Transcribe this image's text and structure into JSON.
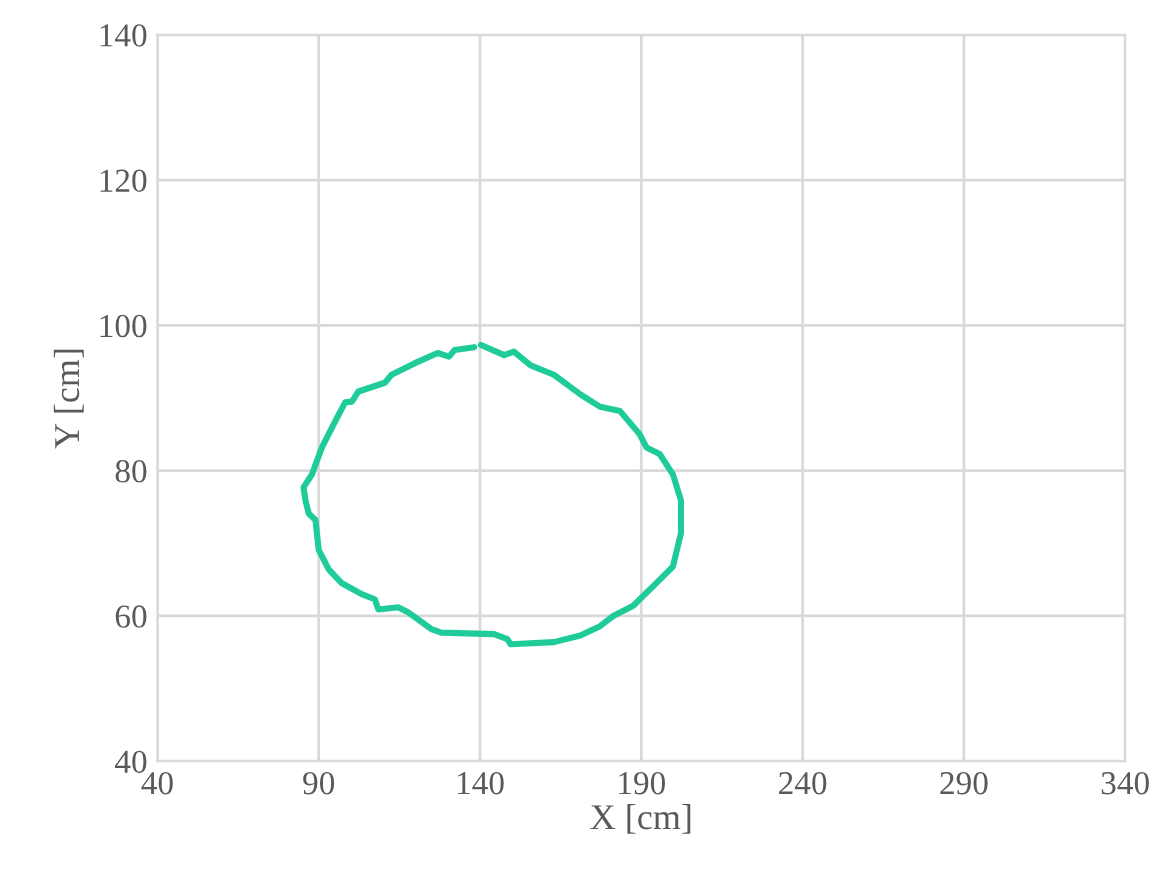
{
  "chart_data": {
    "type": "line",
    "xlabel": "X [cm]",
    "ylabel": "Y [cm]",
    "xlim": [
      40,
      340
    ],
    "xticks": [
      40,
      90,
      140,
      190,
      240,
      290,
      340
    ],
    "ylim": [
      40,
      140
    ],
    "yticks": [
      40,
      60,
      80,
      100,
      120,
      140
    ],
    "grid": true,
    "marker": "none",
    "line_style": "solid",
    "series": [
      {
        "color": "#1fcc99",
        "x": [
          140.3,
          147.5,
          150.5,
          155.7,
          162.9,
          171.1,
          177.2,
          183.4,
          189.5,
          191.6,
          195.7,
          199.8,
          202.3,
          202.3,
          199.8,
          193.7,
          187.5,
          181.3,
          177.2,
          171.1,
          162.9,
          149.5,
          148.5,
          144.4,
          128.0,
          124.9,
          117.7,
          114.6,
          108.5,
          107.4,
          103.3,
          97.2,
          93.1,
          90.0,
          89.0,
          86.9,
          85.9,
          85.3,
          87.9,
          91.0,
          95.1,
          98.2,
          100.3,
          102.3,
          110.5,
          112.6,
          119.8,
          126.9,
          130.4,
          132.1,
          138.2
        ],
        "values": [
          97.3,
          95.9,
          96.4,
          94.5,
          93.2,
          90.5,
          88.8,
          88.2,
          85.0,
          83.2,
          82.3,
          79.5,
          75.9,
          71.4,
          66.8,
          64.1,
          61.4,
          60.0,
          58.6,
          57.3,
          56.4,
          56.1,
          56.8,
          57.5,
          57.7,
          58.2,
          60.5,
          61.2,
          60.9,
          62.3,
          63.0,
          64.5,
          66.4,
          69.1,
          73.2,
          74.1,
          75.9,
          77.7,
          79.5,
          83.2,
          86.8,
          89.4,
          89.5,
          90.9,
          92.1,
          93.2,
          94.8,
          96.2,
          95.7,
          96.6,
          97.0
        ]
      }
    ]
  }
}
